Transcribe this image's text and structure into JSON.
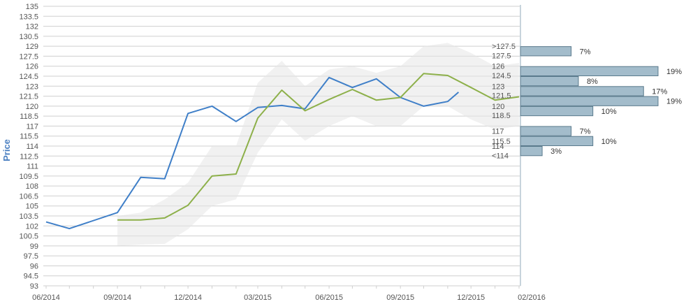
{
  "chart_data": {
    "type": "line",
    "title": "",
    "xlabel": "",
    "ylabel": "Price",
    "ylim": [
      93,
      135
    ],
    "y_ticks": [
      "93",
      "94.5",
      "96",
      "97.5",
      "99",
      "100.5",
      "102",
      "103.5",
      "105",
      "106.5",
      "108",
      "109.5",
      "111",
      "112.5",
      "114",
      "115.5",
      "117",
      "118.5",
      "120",
      "121.5",
      "123",
      "124.5",
      "126",
      "127.5",
      "129",
      "130.5",
      "132",
      "133.5",
      "135"
    ],
    "x_ticks": [
      "06/2014",
      "09/2014",
      "12/2014",
      "03/2015",
      "06/2015",
      "09/2015",
      "12/2015",
      "02/2016"
    ],
    "grid": true,
    "colors": {
      "series_blue": "#3f7fc8",
      "series_green": "#8db04a",
      "band": "#e6e6e6",
      "bar_fill": "#a3bccb",
      "bar_stroke": "#5a7a8c",
      "grid": "#cfcfcf",
      "axis": "#8fa9b8"
    },
    "series": [
      {
        "color": "#3f7fc8",
        "points": [
          [
            "2014-06-01",
            102.6
          ],
          [
            "2014-07-01",
            101.6
          ],
          [
            "2014-09-01",
            104.0
          ],
          [
            "2014-10-01",
            109.3
          ],
          [
            "2014-11-01",
            109.1
          ],
          [
            "2014-12-01",
            118.9
          ],
          [
            "2015-01-01",
            120.0
          ],
          [
            "2015-02-01",
            117.7
          ],
          [
            "2015-03-01",
            119.8
          ],
          [
            "2015-04-01",
            120.1
          ],
          [
            "2015-05-01",
            119.6
          ],
          [
            "2015-06-01",
            124.3
          ],
          [
            "2015-07-01",
            122.8
          ],
          [
            "2015-08-01",
            124.1
          ],
          [
            "2015-09-01",
            121.3
          ],
          [
            "2015-10-01",
            120.0
          ],
          [
            "2015-11-01",
            120.7
          ],
          [
            "2015-11-15",
            122.1
          ]
        ]
      },
      {
        "color": "#8db04a",
        "points": [
          [
            "2014-09-01",
            102.9
          ],
          [
            "2014-10-01",
            102.9
          ],
          [
            "2014-11-01",
            103.2
          ],
          [
            "2014-12-01",
            105.1
          ],
          [
            "2015-01-01",
            109.5
          ],
          [
            "2015-02-01",
            109.8
          ],
          [
            "2015-03-01",
            118.2
          ],
          [
            "2015-04-01",
            122.4
          ],
          [
            "2015-05-01",
            119.3
          ],
          [
            "2015-06-01",
            121.0
          ],
          [
            "2015-07-01",
            122.5
          ],
          [
            "2015-08-01",
            120.9
          ],
          [
            "2015-09-01",
            121.3
          ],
          [
            "2015-10-01",
            124.9
          ],
          [
            "2015-11-01",
            124.6
          ],
          [
            "2015-12-01",
            122.8
          ],
          [
            "2016-01-01",
            120.9
          ],
          [
            "2016-02-01",
            121.4
          ]
        ]
      }
    ],
    "band": [
      [
        "2014-09-01",
        99.0,
        103.5
      ],
      [
        "2014-10-01",
        99.2,
        104.0
      ],
      [
        "2014-11-01",
        99.3,
        106.0
      ],
      [
        "2014-12-01",
        101.5,
        108.5
      ],
      [
        "2015-01-01",
        105.0,
        114.0
      ],
      [
        "2015-02-01",
        106.0,
        114.0
      ],
      [
        "2015-03-01",
        113.0,
        123.5
      ],
      [
        "2015-04-01",
        118.0,
        126.8
      ],
      [
        "2015-05-01",
        114.8,
        123.0
      ],
      [
        "2015-06-01",
        117.0,
        125.5
      ],
      [
        "2015-07-01",
        118.5,
        126.0
      ],
      [
        "2015-08-01",
        117.0,
        125.0
      ],
      [
        "2015-09-01",
        117.0,
        126.0
      ],
      [
        "2015-10-01",
        120.0,
        129.0
      ],
      [
        "2015-11-01",
        120.0,
        129.5
      ],
      [
        "2015-12-01",
        118.0,
        128.0
      ],
      [
        "2016-01-01",
        116.5,
        126.0
      ],
      [
        "2016-02-01",
        117.0,
        126.5
      ]
    ],
    "distribution": [
      {
        "labels": [
          ">127.5",
          "127.5"
        ],
        "range": [
          127.5,
          129.0
        ],
        "percent": 7,
        "text": "7%"
      },
      {
        "labels": [
          "126",
          "124.5"
        ],
        "range": [
          124.5,
          126.0
        ],
        "percent": 19,
        "text": "19%"
      },
      {
        "labels": [],
        "range": [
          123.0,
          124.5
        ],
        "percent": 8,
        "text": "8%"
      },
      {
        "labels": [
          "123",
          "121.5"
        ],
        "range": [
          121.5,
          123.0
        ],
        "percent": 17,
        "text": "17%"
      },
      {
        "labels": [],
        "range": [
          120.0,
          121.5
        ],
        "percent": 19,
        "text": "19%"
      },
      {
        "labels": [
          "120",
          "118.5"
        ],
        "range": [
          118.5,
          120.0
        ],
        "percent": 10,
        "text": "10%"
      },
      {
        "labels": [
          "117"
        ],
        "range": [
          115.5,
          117.0
        ],
        "percent": 7,
        "text": "7%"
      },
      {
        "labels": [
          "115.5"
        ],
        "range": [
          114.0,
          115.5
        ],
        "percent": 10,
        "text": "10%"
      },
      {
        "labels": [
          "114",
          "<114"
        ],
        "range": [
          112.5,
          114.0
        ],
        "percent": 3,
        "text": "3%"
      }
    ]
  }
}
